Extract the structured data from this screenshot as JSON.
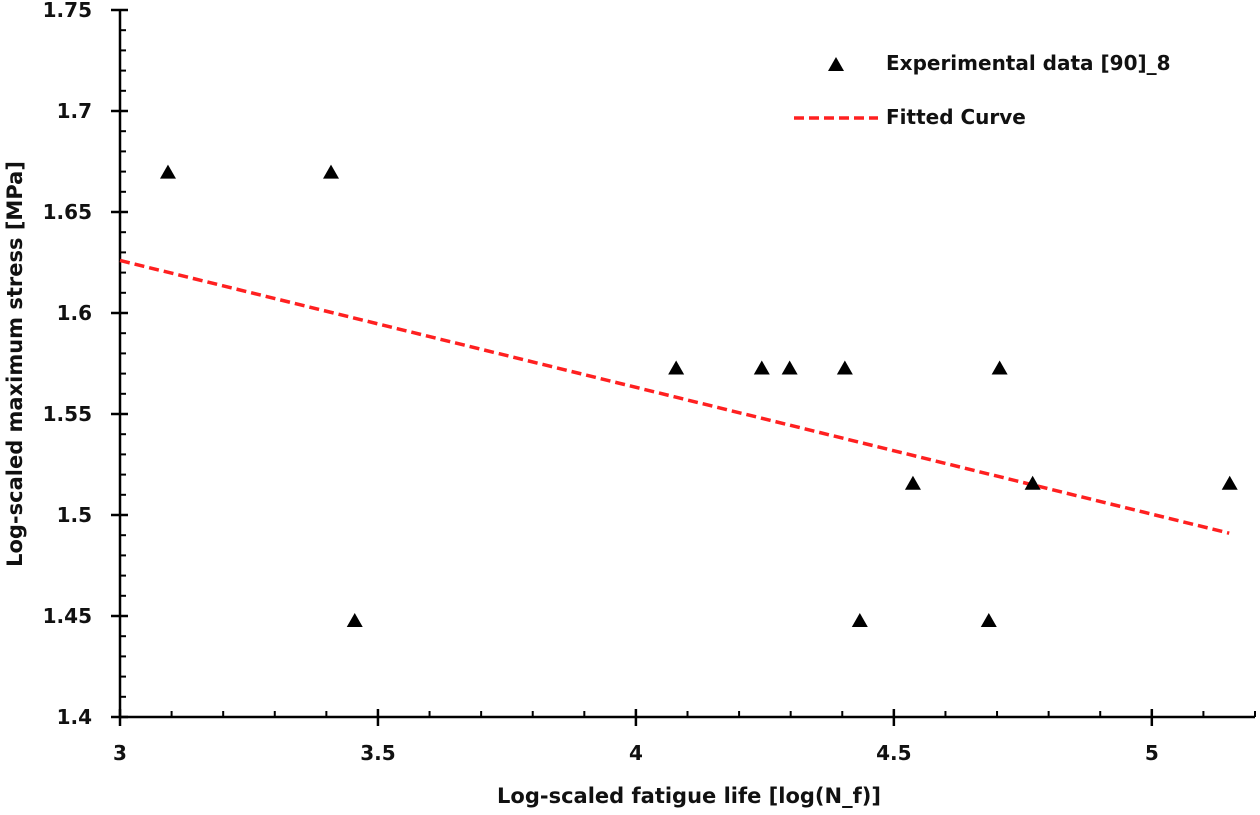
{
  "chart_data": {
    "type": "scatter",
    "title": "",
    "xlabel": "Log-scaled fatigue life [log(N_f)]",
    "ylabel": "Log-scaled maximum stress [MPa]",
    "xlim": [
      3,
      5.2
    ],
    "ylim": [
      1.4,
      1.75
    ],
    "x_ticks": [
      "3",
      "3.5",
      "4",
      "4.5",
      "5"
    ],
    "x_tick_values": [
      3,
      3.5,
      4,
      4.5,
      5
    ],
    "y_ticks": [
      "1.4",
      "1.45",
      "1.5",
      "1.55",
      "1.6",
      "1.65",
      "1.7",
      "1.75"
    ],
    "y_tick_values": [
      1.4,
      1.45,
      1.5,
      1.55,
      1.6,
      1.65,
      1.7,
      1.75
    ],
    "x_minor_step": 0.1,
    "y_minor_step": 0.01,
    "grid": false,
    "legend_position": "top-right",
    "series": [
      {
        "name": "Experimental data [90]_8",
        "marker": "triangle",
        "color": "#000000",
        "x": [
          3.093,
          3.409,
          3.455,
          4.078,
          4.244,
          4.298,
          4.405,
          4.434,
          4.537,
          4.684,
          4.705,
          4.769,
          5.151
        ],
        "y": [
          1.669,
          1.669,
          1.447,
          1.572,
          1.572,
          1.572,
          1.572,
          1.447,
          1.515,
          1.447,
          1.572,
          1.515,
          1.515
        ]
      },
      {
        "name": "Fitted Curve",
        "style": "dashed",
        "color": "#ff2020",
        "x": [
          3,
          5.15
        ],
        "y": [
          1.626,
          1.491
        ]
      }
    ]
  }
}
